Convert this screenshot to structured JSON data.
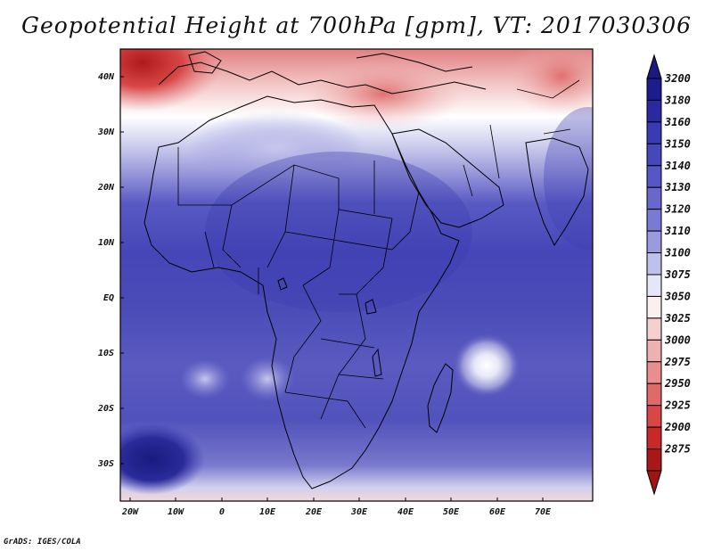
{
  "title": "Geopotential Height at 700hPa [gpm], VT: 2017030306",
  "credit": "GrADS: IGES/COLA",
  "map": {
    "lat_ticks": [
      "40N",
      "30N",
      "20N",
      "10N",
      "EQ",
      "10S",
      "20S",
      "30S"
    ],
    "lon_ticks": [
      "20W",
      "10W",
      "0",
      "10E",
      "20E",
      "30E",
      "40E",
      "50E",
      "60E",
      "70E"
    ],
    "extent": {
      "lon_min": -23,
      "lon_max": 80,
      "lat_min": -37,
      "lat_max": 44
    },
    "low_center": {
      "lon": 57,
      "lat": -12
    },
    "high_center": {
      "lon": -18,
      "lat": -30
    }
  },
  "colorbar": {
    "levels": [
      "3200",
      "3180",
      "3160",
      "3150",
      "3140",
      "3130",
      "3120",
      "3110",
      "3100",
      "3075",
      "3050",
      "3025",
      "3000",
      "2975",
      "2950",
      "2925",
      "2900",
      "2875"
    ],
    "colors": [
      "#1c1c8c",
      "#2a2aa0",
      "#3a3ab4",
      "#4747bc",
      "#5656c4",
      "#6767cc",
      "#7a7ad4",
      "#9a9ade",
      "#c0c0ec",
      "#e6e6f6",
      "#faf0f0",
      "#f4d0d0",
      "#eeb0b0",
      "#e88e8e",
      "#e06a6a",
      "#d84646",
      "#c82828",
      "#a81818"
    ],
    "top_color": "#1a1a80",
    "bottom_color": "#a01414"
  }
}
